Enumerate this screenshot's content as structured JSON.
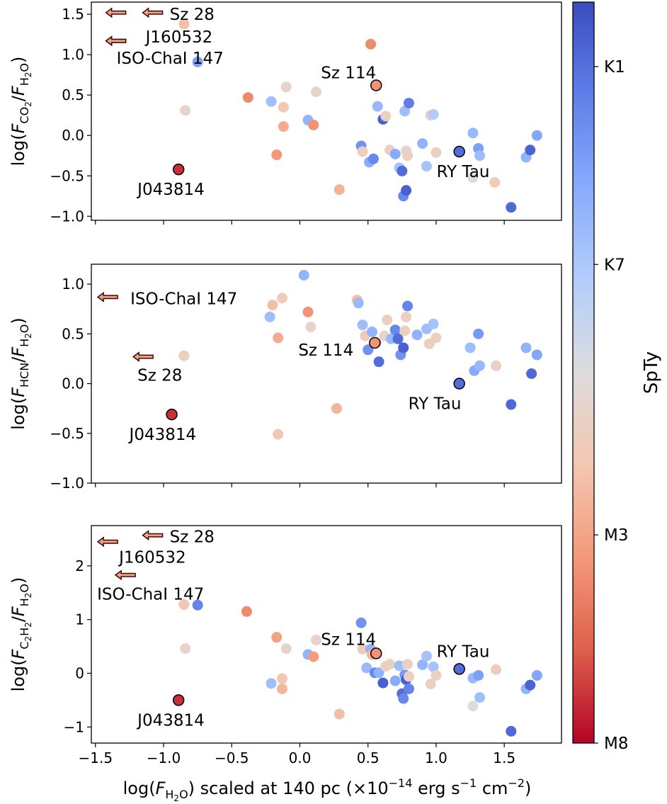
{
  "colorbar": {
    "label": "SpTy",
    "ticks": [
      {
        "label": "K1",
        "t": 0.913
      },
      {
        "label": "K7",
        "t": 0.646
      },
      {
        "label": "M3",
        "t": 0.281
      },
      {
        "label": "M8",
        "t": 0.0
      }
    ],
    "stops": [
      "#b40426",
      "#dd5f4b",
      "#f4987a",
      "#f3c7b1",
      "#dddcdc",
      "#b3cdfb",
      "#88abfd",
      "#5f7fe8",
      "#3b4cc0"
    ]
  },
  "x_axis": {
    "label_parts": [
      "log(",
      "F",
      "H",
      "2",
      "O",
      ") scaled at 140 pc (×10",
      "−14",
      " erg s",
      "−1",
      " cm",
      "−2",
      ")"
    ],
    "range": [
      -1.53,
      1.92
    ],
    "ticks": [
      -1.5,
      -1.0,
      -0.5,
      0.0,
      0.5,
      1.0,
      1.5
    ],
    "tick_labels": [
      "−1.5",
      "−1.0",
      "−0.5",
      "0.0",
      "0.5",
      "1.0",
      "1.5"
    ]
  },
  "chart_data": [
    {
      "type": "scatter",
      "ylabel_parts": [
        "log(",
        "F",
        "CO",
        "2",
        "/",
        "F",
        "H",
        "2",
        "O",
        ")"
      ],
      "ylim": [
        -1.05,
        1.65
      ],
      "yticks": [
        -1.0,
        -0.5,
        0.0,
        0.5,
        1.0,
        1.5
      ],
      "ytick_labels": [
        "−1.0",
        "−0.5",
        "0.0",
        "0.5",
        "1.0",
        "1.5"
      ],
      "points": [
        {
          "x": -0.85,
          "y": 1.38,
          "c": 0.35
        },
        {
          "x": -0.84,
          "y": 0.31,
          "c": 0.45
        },
        {
          "x": -0.75,
          "y": 0.91,
          "c": 0.78
        },
        {
          "x": -0.38,
          "y": 0.47,
          "c": 0.22
        },
        {
          "x": -0.21,
          "y": 0.42,
          "c": 0.68
        },
        {
          "x": -0.17,
          "y": -0.24,
          "c": 0.25
        },
        {
          "x": -0.12,
          "y": 0.35,
          "c": 0.38
        },
        {
          "x": -0.12,
          "y": 0.11,
          "c": 0.3
        },
        {
          "x": -0.1,
          "y": 0.6,
          "c": 0.45
        },
        {
          "x": 0.06,
          "y": 0.19,
          "c": 0.72
        },
        {
          "x": 0.1,
          "y": 0.13,
          "c": 0.24
        },
        {
          "x": 0.12,
          "y": 0.54,
          "c": 0.45
        },
        {
          "x": 0.29,
          "y": -0.67,
          "c": 0.32
        },
        {
          "x": 0.45,
          "y": -0.13,
          "c": 0.82
        },
        {
          "x": 0.46,
          "y": -0.2,
          "c": 0.42
        },
        {
          "x": 0.51,
          "y": -0.33,
          "c": 0.75
        },
        {
          "x": 0.52,
          "y": 1.13,
          "c": 0.22
        },
        {
          "x": 0.54,
          "y": -0.29,
          "c": 0.85
        },
        {
          "x": 0.57,
          "y": 0.36,
          "c": 0.7
        },
        {
          "x": 0.61,
          "y": 0.2,
          "c": 0.95
        },
        {
          "x": 0.63,
          "y": 0.24,
          "c": 0.42
        },
        {
          "x": 0.66,
          "y": -0.18,
          "c": 0.42
        },
        {
          "x": 0.7,
          "y": -0.23,
          "c": 0.75
        },
        {
          "x": 0.73,
          "y": -0.4,
          "c": 0.66
        },
        {
          "x": 0.75,
          "y": -0.44,
          "c": 0.92
        },
        {
          "x": 0.76,
          "y": -0.75,
          "c": 0.85
        },
        {
          "x": 0.77,
          "y": 0.3,
          "c": 0.68
        },
        {
          "x": 0.78,
          "y": -0.68,
          "c": 0.95
        },
        {
          "x": 0.78,
          "y": -0.19,
          "c": 0.45
        },
        {
          "x": 0.79,
          "y": -0.25,
          "c": 0.43
        },
        {
          "x": 0.8,
          "y": 0.4,
          "c": 0.88
        },
        {
          "x": 0.9,
          "y": -0.1,
          "c": 0.72
        },
        {
          "x": 0.93,
          "y": -0.38,
          "c": 0.66
        },
        {
          "x": 0.96,
          "y": 0.25,
          "c": 0.42
        },
        {
          "x": 0.98,
          "y": 0.26,
          "c": 0.63
        },
        {
          "x": 1.0,
          "y": -0.21,
          "c": 0.42
        },
        {
          "x": 1.27,
          "y": 0.03,
          "c": 0.7
        },
        {
          "x": 1.27,
          "y": -0.52,
          "c": 0.5
        },
        {
          "x": 1.31,
          "y": -0.16,
          "c": 0.78
        },
        {
          "x": 1.32,
          "y": -0.25,
          "c": 0.68
        },
        {
          "x": 1.43,
          "y": -0.58,
          "c": 0.4
        },
        {
          "x": 1.55,
          "y": -0.89,
          "c": 0.93
        },
        {
          "x": 1.66,
          "y": -0.27,
          "c": 0.72
        },
        {
          "x": 1.69,
          "y": -0.18,
          "c": 0.94
        },
        {
          "x": 1.74,
          "y": 0.0,
          "c": 0.76
        }
      ],
      "highlighted": [
        {
          "x": 0.56,
          "y": 0.62,
          "c": 0.24,
          "label": "Sz 114",
          "ldx": -78,
          "ldy": -10
        },
        {
          "x": 1.17,
          "y": -0.2,
          "c": 0.92,
          "label": "RY Tau",
          "ldx": -32,
          "ldy": 36
        },
        {
          "x": -0.89,
          "y": -0.42,
          "c": 0.06,
          "label": "J043814",
          "ldx": -58,
          "ldy": 36
        }
      ],
      "limits": [
        {
          "x": -1.35,
          "y": 1.52,
          "label": "",
          "ldx": 0,
          "ldy": 0
        },
        {
          "x": -1.08,
          "y": 1.52,
          "label": "Sz 28",
          "ldx": 24,
          "ldy": 10
        },
        {
          "x": -1.35,
          "y": 1.17,
          "label": "J160532",
          "ldx": 42,
          "ldy": 2
        },
        {
          "x": -1.35,
          "y": 1.17,
          "label": "ISO-ChaI 147",
          "ldx": 1,
          "ldy": 32
        }
      ]
    },
    {
      "type": "scatter",
      "ylabel_parts": [
        "log(",
        "F",
        "HCN",
        "",
        "/",
        "F",
        "H",
        "2",
        "O",
        ")"
      ],
      "ylim": [
        -1.0,
        1.2
      ],
      "yticks": [
        -1.0,
        -0.5,
        0.0,
        0.5,
        1.0
      ],
      "ytick_labels": [
        "−1.0",
        "−0.5",
        "0.0",
        "0.5",
        "1.0"
      ],
      "points": [
        {
          "x": -0.85,
          "y": 0.28,
          "c": 0.42
        },
        {
          "x": -0.22,
          "y": 0.67,
          "c": 0.68
        },
        {
          "x": -0.2,
          "y": 0.79,
          "c": 0.35
        },
        {
          "x": -0.16,
          "y": 0.46,
          "c": 0.3
        },
        {
          "x": -0.13,
          "y": 0.86,
          "c": 0.4
        },
        {
          "x": -0.16,
          "y": -0.51,
          "c": 0.38
        },
        {
          "x": 0.03,
          "y": 1.09,
          "c": 0.72
        },
        {
          "x": 0.06,
          "y": 0.72,
          "c": 0.24
        },
        {
          "x": 0.08,
          "y": 0.57,
          "c": 0.45
        },
        {
          "x": 0.27,
          "y": -0.25,
          "c": 0.33
        },
        {
          "x": 0.42,
          "y": 0.84,
          "c": 0.35
        },
        {
          "x": 0.43,
          "y": 0.81,
          "c": 0.7
        },
        {
          "x": 0.46,
          "y": 0.59,
          "c": 0.68
        },
        {
          "x": 0.48,
          "y": 0.48,
          "c": 0.4
        },
        {
          "x": 0.5,
          "y": 0.34,
          "c": 0.82
        },
        {
          "x": 0.53,
          "y": 0.52,
          "c": 0.72
        },
        {
          "x": 0.56,
          "y": 0.41,
          "c": 0.4
        },
        {
          "x": 0.58,
          "y": 0.22,
          "c": 0.92
        },
        {
          "x": 0.62,
          "y": 0.48,
          "c": 0.45
        },
        {
          "x": 0.64,
          "y": 0.64,
          "c": 0.42
        },
        {
          "x": 0.67,
          "y": 0.45,
          "c": 0.7
        },
        {
          "x": 0.7,
          "y": 0.54,
          "c": 0.85
        },
        {
          "x": 0.72,
          "y": 0.45,
          "c": 0.92
        },
        {
          "x": 0.74,
          "y": 0.29,
          "c": 0.82
        },
        {
          "x": 0.76,
          "y": 0.36,
          "c": 0.95
        },
        {
          "x": 0.77,
          "y": 0.53,
          "c": 0.42
        },
        {
          "x": 0.78,
          "y": 0.67,
          "c": 0.42
        },
        {
          "x": 0.79,
          "y": 0.78,
          "c": 0.86
        },
        {
          "x": 0.86,
          "y": 0.49,
          "c": 0.72
        },
        {
          "x": 0.93,
          "y": 0.55,
          "c": 0.68
        },
        {
          "x": 0.95,
          "y": 0.4,
          "c": 0.42
        },
        {
          "x": 0.98,
          "y": 0.6,
          "c": 0.66
        },
        {
          "x": 1.0,
          "y": 0.46,
          "c": 0.42
        },
        {
          "x": 1.25,
          "y": 0.36,
          "c": 0.68
        },
        {
          "x": 1.28,
          "y": 0.13,
          "c": 0.75
        },
        {
          "x": 1.31,
          "y": 0.5,
          "c": 0.8
        },
        {
          "x": 1.32,
          "y": 0.18,
          "c": 0.7
        },
        {
          "x": 1.44,
          "y": 0.18,
          "c": 0.42
        },
        {
          "x": 1.55,
          "y": -0.21,
          "c": 0.93
        },
        {
          "x": 1.66,
          "y": 0.36,
          "c": 0.72
        },
        {
          "x": 1.7,
          "y": 0.1,
          "c": 0.93
        },
        {
          "x": 1.74,
          "y": 0.29,
          "c": 0.76
        }
      ],
      "highlighted": [
        {
          "x": 0.55,
          "y": 0.41,
          "c": 0.24,
          "label": "Sz 114",
          "ldx": -108,
          "ldy": 18
        },
        {
          "x": 1.17,
          "y": 0.0,
          "c": 0.92,
          "label": "RY Tau",
          "ldx": -72,
          "ldy": 36
        },
        {
          "x": -0.94,
          "y": -0.31,
          "c": 0.06,
          "label": "J043814",
          "ldx": -60,
          "ldy": 36
        }
      ],
      "limits": [
        {
          "x": -1.41,
          "y": 0.87,
          "label": "ISO-ChaI 147",
          "ldx": 32,
          "ldy": 10
        },
        {
          "x": -1.15,
          "y": 0.27,
          "label": "Sz 28",
          "ldx": -8,
          "ldy": 34
        }
      ]
    },
    {
      "type": "scatter",
      "ylabel_parts": [
        "log(",
        "F",
        "C",
        "2",
        "H2",
        "/",
        "F",
        "H",
        "2",
        "O",
        ")"
      ],
      "ylim": [
        -1.3,
        2.75
      ],
      "yticks": [
        -1,
        0,
        1,
        2
      ],
      "ytick_labels": [
        "−1",
        "0",
        "1",
        "2"
      ],
      "points": [
        {
          "x": -0.85,
          "y": 1.28,
          "c": 0.38
        },
        {
          "x": -0.84,
          "y": 0.46,
          "c": 0.45
        },
        {
          "x": -0.75,
          "y": 1.27,
          "c": 0.86
        },
        {
          "x": -0.39,
          "y": 1.15,
          "c": 0.22
        },
        {
          "x": -0.21,
          "y": -0.19,
          "c": 0.68
        },
        {
          "x": -0.17,
          "y": 0.67,
          "c": 0.27
        },
        {
          "x": -0.13,
          "y": -0.1,
          "c": 0.38
        },
        {
          "x": -0.13,
          "y": -0.29,
          "c": 0.33
        },
        {
          "x": -0.1,
          "y": 0.46,
          "c": 0.45
        },
        {
          "x": 0.06,
          "y": 0.35,
          "c": 0.72
        },
        {
          "x": 0.1,
          "y": 0.31,
          "c": 0.26
        },
        {
          "x": 0.12,
          "y": 0.62,
          "c": 0.45
        },
        {
          "x": 0.29,
          "y": -0.76,
          "c": 0.35
        },
        {
          "x": 0.45,
          "y": 0.94,
          "c": 0.82
        },
        {
          "x": 0.46,
          "y": 0.45,
          "c": 0.4
        },
        {
          "x": 0.49,
          "y": 0.1,
          "c": 0.7
        },
        {
          "x": 0.52,
          "y": 0.45,
          "c": 0.72
        },
        {
          "x": 0.53,
          "y": 0.35,
          "c": 0.33
        },
        {
          "x": 0.55,
          "y": 0.01,
          "c": 0.85
        },
        {
          "x": 0.58,
          "y": 0.01,
          "c": 0.72
        },
        {
          "x": 0.61,
          "y": -0.18,
          "c": 0.95
        },
        {
          "x": 0.63,
          "y": 0.13,
          "c": 0.42
        },
        {
          "x": 0.66,
          "y": 0.17,
          "c": 0.42
        },
        {
          "x": 0.7,
          "y": -0.14,
          "c": 0.75
        },
        {
          "x": 0.73,
          "y": 0.14,
          "c": 0.68
        },
        {
          "x": 0.75,
          "y": -0.38,
          "c": 0.92
        },
        {
          "x": 0.76,
          "y": -0.47,
          "c": 0.85
        },
        {
          "x": 0.77,
          "y": -0.03,
          "c": 0.8
        },
        {
          "x": 0.78,
          "y": -0.12,
          "c": 0.95
        },
        {
          "x": 0.79,
          "y": 0.17,
          "c": 0.42
        },
        {
          "x": 0.8,
          "y": -0.06,
          "c": 0.42
        },
        {
          "x": 0.8,
          "y": -0.29,
          "c": 0.86
        },
        {
          "x": 0.9,
          "y": 0.16,
          "c": 0.72
        },
        {
          "x": 0.93,
          "y": 0.32,
          "c": 0.66
        },
        {
          "x": 0.96,
          "y": -0.2,
          "c": 0.42
        },
        {
          "x": 0.98,
          "y": 0.12,
          "c": 0.66
        },
        {
          "x": 1.0,
          "y": -0.04,
          "c": 0.42
        },
        {
          "x": 1.27,
          "y": -0.09,
          "c": 0.7
        },
        {
          "x": 1.27,
          "y": -0.61,
          "c": 0.5
        },
        {
          "x": 1.31,
          "y": -0.04,
          "c": 0.78
        },
        {
          "x": 1.32,
          "y": -0.45,
          "c": 0.68
        },
        {
          "x": 1.44,
          "y": 0.07,
          "c": 0.4
        },
        {
          "x": 1.55,
          "y": -1.08,
          "c": 0.93
        },
        {
          "x": 1.66,
          "y": -0.29,
          "c": 0.72
        },
        {
          "x": 1.69,
          "y": -0.22,
          "c": 0.94
        },
        {
          "x": 1.74,
          "y": -0.04,
          "c": 0.76
        }
      ],
      "highlighted": [
        {
          "x": 0.56,
          "y": 0.37,
          "c": 0.24,
          "label": "Sz 114",
          "ldx": -78,
          "ldy": -12
        },
        {
          "x": 1.17,
          "y": 0.08,
          "c": 0.92,
          "label": "RY Tau",
          "ldx": -32,
          "ldy": -17
        },
        {
          "x": -0.89,
          "y": -0.5,
          "c": 0.06,
          "label": "J043814",
          "ldx": -58,
          "ldy": 36
        }
      ],
      "limits": [
        {
          "x": -1.08,
          "y": 2.57,
          "label": "Sz 28",
          "ldx": 24,
          "ldy": 10
        },
        {
          "x": -1.41,
          "y": 2.45,
          "label": "J160532",
          "ldx": 16,
          "ldy": 30
        },
        {
          "x": -1.28,
          "y": 1.83,
          "label": "ISO-ChaI 147",
          "ldx": -40,
          "ldy": 35
        }
      ]
    }
  ]
}
